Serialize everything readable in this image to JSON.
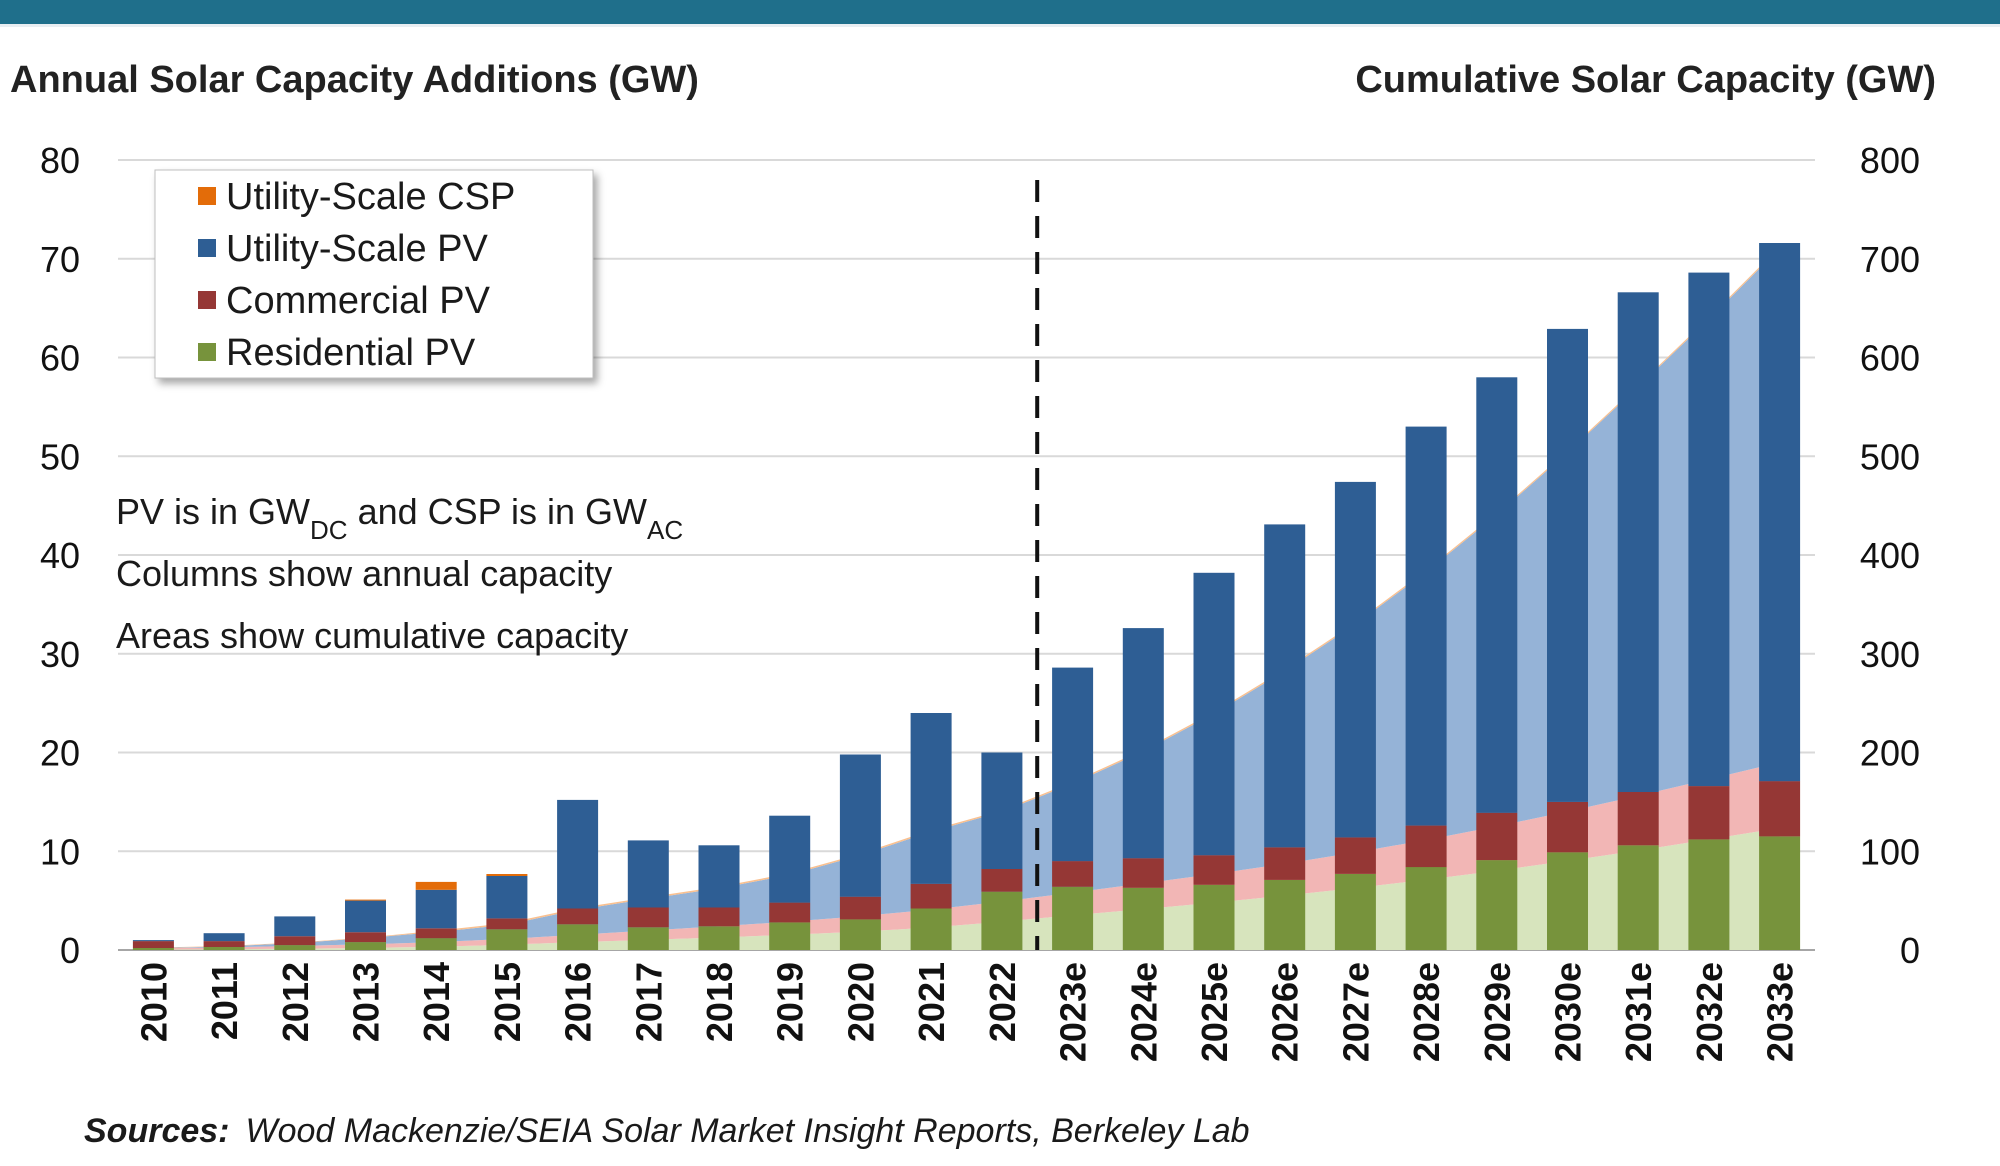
{
  "chart_data": {
    "type": "bar",
    "left_title": "Annual Solar Capacity Additions (GW)",
    "right_title": "Cumulative Solar Capacity (GW)",
    "categories": [
      "2010",
      "2011",
      "2012",
      "2013",
      "2014",
      "2015",
      "2016",
      "2017",
      "2018",
      "2019",
      "2020",
      "2021",
      "2022",
      "2023e",
      "2024e",
      "2025e",
      "2026e",
      "2027e",
      "2028e",
      "2029e",
      "2030e",
      "2031e",
      "2032e",
      "2033e"
    ],
    "ylim_left": [
      0,
      80
    ],
    "yticks_left": [
      "0",
      "10",
      "20",
      "30",
      "40",
      "50",
      "60",
      "70",
      "80"
    ],
    "ylim_right": [
      0,
      800
    ],
    "yticks_right": [
      "0",
      "100",
      "200",
      "300",
      "400",
      "500",
      "600",
      "700",
      "800"
    ],
    "grid": true,
    "legend_position": "top-left",
    "forecast_divider_after": "2022",
    "series": [
      {
        "name": "Residential PV",
        "color": "#77933c",
        "area_color": "#d7e4bd",
        "values": [
          0.2,
          0.3,
          0.5,
          0.8,
          1.2,
          2.1,
          2.6,
          2.3,
          2.4,
          2.8,
          3.1,
          4.2,
          5.9,
          6.4,
          6.3,
          6.6,
          7.1,
          7.7,
          8.4,
          9.1,
          9.9,
          10.6,
          11.2,
          11.5
        ],
        "cumulative": [
          0.5,
          0.8,
          1.3,
          2.1,
          3.3,
          5.4,
          8,
          10.3,
          12.7,
          15.5,
          18.6,
          22.8,
          28.7,
          35.1,
          41.4,
          48,
          55.1,
          62.8,
          71.2,
          80.3,
          90.2,
          100.8,
          112,
          123.5
        ]
      },
      {
        "name": "Commercial PV",
        "color": "#953735",
        "area_color": "#f2b6b5",
        "values": [
          0.7,
          0.6,
          0.9,
          1.0,
          1.0,
          1.1,
          1.6,
          2.0,
          1.9,
          2.0,
          2.3,
          2.5,
          2.3,
          2.6,
          3.0,
          3.0,
          3.3,
          3.7,
          4.2,
          4.8,
          5.1,
          5.4,
          5.4,
          5.6
        ],
        "cumulative": [
          1.2,
          1.8,
          2.7,
          3.7,
          4.7,
          5.8,
          7.4,
          9.4,
          11.3,
          13.3,
          15.6,
          18.1,
          20.4,
          23,
          26,
          29,
          32.3,
          36,
          40.2,
          45,
          50.1,
          55.5,
          60.9,
          66.5
        ]
      },
      {
        "name": "Utility-Scale PV",
        "color": "#2e5e94",
        "area_color": "#95b3d7",
        "values": [
          0.1,
          0.8,
          2.0,
          3.2,
          3.9,
          4.3,
          11,
          6.8,
          6.3,
          8.8,
          14.4,
          17.3,
          11.8,
          19.6,
          23.3,
          28.6,
          32.7,
          36,
          40.4,
          44.1,
          47.9,
          50.6,
          52,
          54.5
        ],
        "cumulative": [
          0.2,
          1,
          3,
          6.2,
          10.1,
          14.4,
          25.4,
          32.2,
          38.5,
          47.3,
          61.7,
          79,
          90.8,
          110.4,
          133.7,
          162.3,
          195,
          231,
          271.4,
          315.5,
          363.4,
          414,
          466,
          520.5
        ]
      },
      {
        "name": "Utility-Scale CSP",
        "color": "#e36c09",
        "area_color": "#fac08f",
        "values": [
          0,
          0,
          0,
          0.1,
          0.8,
          0.2,
          0,
          0,
          0,
          0,
          0,
          0,
          0,
          0,
          0,
          0,
          0,
          0,
          0,
          0,
          0,
          0,
          0,
          0
        ],
        "cumulative": [
          0.5,
          0.5,
          0.5,
          0.6,
          1.4,
          1.6,
          1.6,
          1.6,
          1.6,
          1.6,
          1.6,
          1.6,
          1.6,
          1.6,
          1.6,
          1.6,
          1.6,
          1.6,
          1.6,
          1.6,
          1.6,
          1.6,
          1.6,
          1.6
        ]
      }
    ],
    "legend_order": [
      "Utility-Scale CSP",
      "Utility-Scale PV",
      "Commercial PV",
      "Residential PV"
    ]
  },
  "notes": {
    "line1_a": "PV is in GW",
    "line1_sub1": "DC",
    "line1_b": " and CSP is in GW",
    "line1_sub2": "AC",
    "line2": "Columns  show annual  capacity",
    "line3": "Areas show cumulative capacity"
  },
  "sources": {
    "label": "Sources:",
    "text": "Wood Mackenzie/SEIA Solar Market Insight Reports, Berkeley Lab"
  }
}
